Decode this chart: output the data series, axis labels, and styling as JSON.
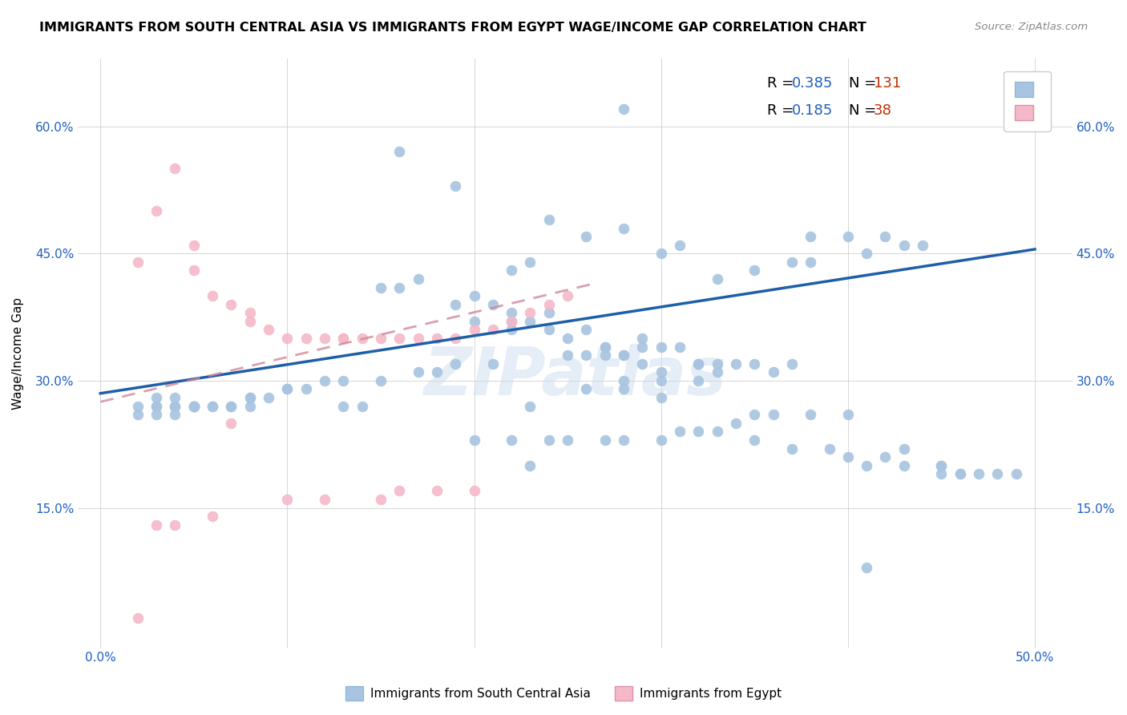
{
  "title": "IMMIGRANTS FROM SOUTH CENTRAL ASIA VS IMMIGRANTS FROM EGYPT WAGE/INCOME GAP CORRELATION CHART",
  "source": "Source: ZipAtlas.com",
  "xlabel_label": "Immigrants from South Central Asia",
  "xlabel2_label": "Immigrants from Egypt",
  "ylabel": "Wage/Income Gap",
  "x_ticks": [
    0.0,
    0.1,
    0.2,
    0.3,
    0.4,
    0.5
  ],
  "y_tick_labels": [
    "15.0%",
    "30.0%",
    "45.0%",
    "60.0%"
  ],
  "y_ticks": [
    0.15,
    0.3,
    0.45,
    0.6
  ],
  "xlim": [
    -0.012,
    0.52
  ],
  "ylim": [
    -0.015,
    0.68
  ],
  "R_blue": 0.385,
  "N_blue": 131,
  "R_pink": 0.185,
  "N_pink": 38,
  "blue_color": "#a8c4e0",
  "pink_color": "#f4b8c8",
  "blue_line_color": "#1e5fa8",
  "pink_line_color": "#d08898",
  "legend_R_color": "#2060c0",
  "legend_N_color": "#c03000",
  "watermark": "ZIPatlas",
  "blue_scatter_x": [
    0.28,
    0.16,
    0.19,
    0.24,
    0.26,
    0.28,
    0.3,
    0.31,
    0.23,
    0.22,
    0.17,
    0.15,
    0.16,
    0.2,
    0.19,
    0.21,
    0.22,
    0.24,
    0.2,
    0.22,
    0.23,
    0.22,
    0.26,
    0.24,
    0.25,
    0.29,
    0.27,
    0.27,
    0.3,
    0.31,
    0.29,
    0.28,
    0.27,
    0.26,
    0.25,
    0.28,
    0.29,
    0.32,
    0.34,
    0.32,
    0.33,
    0.35,
    0.37,
    0.36,
    0.33,
    0.3,
    0.28,
    0.3,
    0.32,
    0.28,
    0.26,
    0.3,
    0.23,
    0.13,
    0.14,
    0.08,
    0.07,
    0.05,
    0.04,
    0.03,
    0.04,
    0.05,
    0.06,
    0.05,
    0.07,
    0.06,
    0.05,
    0.08,
    0.08,
    0.09,
    0.1,
    0.1,
    0.11,
    0.12,
    0.13,
    0.15,
    0.17,
    0.18,
    0.19,
    0.21,
    0.38,
    0.4,
    0.42,
    0.44,
    0.43,
    0.41,
    0.38,
    0.37,
    0.35,
    0.33,
    0.03,
    0.04,
    0.05,
    0.03,
    0.02,
    0.02,
    0.03,
    0.04,
    0.45,
    0.46,
    0.46,
    0.47,
    0.48,
    0.49,
    0.45,
    0.43,
    0.41,
    0.42,
    0.4,
    0.39,
    0.37,
    0.35,
    0.2,
    0.22,
    0.24,
    0.25,
    0.27,
    0.28,
    0.3,
    0.31,
    0.32,
    0.33,
    0.34,
    0.35,
    0.36,
    0.38,
    0.4,
    0.41,
    0.43,
    0.45,
    0.23
  ],
  "blue_scatter_y": [
    0.62,
    0.57,
    0.53,
    0.49,
    0.47,
    0.48,
    0.45,
    0.46,
    0.44,
    0.43,
    0.42,
    0.41,
    0.41,
    0.4,
    0.39,
    0.39,
    0.38,
    0.38,
    0.37,
    0.37,
    0.37,
    0.36,
    0.36,
    0.36,
    0.35,
    0.35,
    0.34,
    0.34,
    0.34,
    0.34,
    0.34,
    0.33,
    0.33,
    0.33,
    0.33,
    0.33,
    0.32,
    0.32,
    0.32,
    0.32,
    0.32,
    0.32,
    0.32,
    0.31,
    0.31,
    0.31,
    0.3,
    0.3,
    0.3,
    0.29,
    0.29,
    0.28,
    0.27,
    0.27,
    0.27,
    0.27,
    0.27,
    0.27,
    0.27,
    0.27,
    0.27,
    0.27,
    0.27,
    0.27,
    0.27,
    0.27,
    0.27,
    0.28,
    0.28,
    0.28,
    0.29,
    0.29,
    0.29,
    0.3,
    0.3,
    0.3,
    0.31,
    0.31,
    0.32,
    0.32,
    0.47,
    0.47,
    0.47,
    0.46,
    0.46,
    0.45,
    0.44,
    0.44,
    0.43,
    0.42,
    0.28,
    0.28,
    0.27,
    0.27,
    0.27,
    0.26,
    0.26,
    0.26,
    0.2,
    0.19,
    0.19,
    0.19,
    0.19,
    0.19,
    0.19,
    0.2,
    0.2,
    0.21,
    0.21,
    0.22,
    0.22,
    0.23,
    0.23,
    0.23,
    0.23,
    0.23,
    0.23,
    0.23,
    0.23,
    0.24,
    0.24,
    0.24,
    0.25,
    0.26,
    0.26,
    0.26,
    0.26,
    0.08,
    0.22,
    0.2,
    0.2
  ],
  "pink_scatter_x": [
    0.02,
    0.04,
    0.03,
    0.05,
    0.05,
    0.06,
    0.07,
    0.08,
    0.08,
    0.09,
    0.1,
    0.11,
    0.12,
    0.13,
    0.13,
    0.14,
    0.15,
    0.16,
    0.17,
    0.18,
    0.19,
    0.2,
    0.21,
    0.22,
    0.23,
    0.24,
    0.25,
    0.2,
    0.18,
    0.16,
    0.15,
    0.12,
    0.1,
    0.07,
    0.06,
    0.04,
    0.03,
    0.02
  ],
  "pink_scatter_y": [
    0.44,
    0.55,
    0.5,
    0.46,
    0.43,
    0.4,
    0.39,
    0.38,
    0.37,
    0.36,
    0.35,
    0.35,
    0.35,
    0.35,
    0.35,
    0.35,
    0.35,
    0.35,
    0.35,
    0.35,
    0.35,
    0.36,
    0.36,
    0.37,
    0.38,
    0.39,
    0.4,
    0.17,
    0.17,
    0.17,
    0.16,
    0.16,
    0.16,
    0.25,
    0.14,
    0.13,
    0.13,
    0.02
  ],
  "blue_line_x": [
    0.0,
    0.5
  ],
  "blue_line_y": [
    0.285,
    0.455
  ],
  "pink_line_x": [
    0.0,
    0.265
  ],
  "pink_line_y": [
    0.275,
    0.415
  ]
}
